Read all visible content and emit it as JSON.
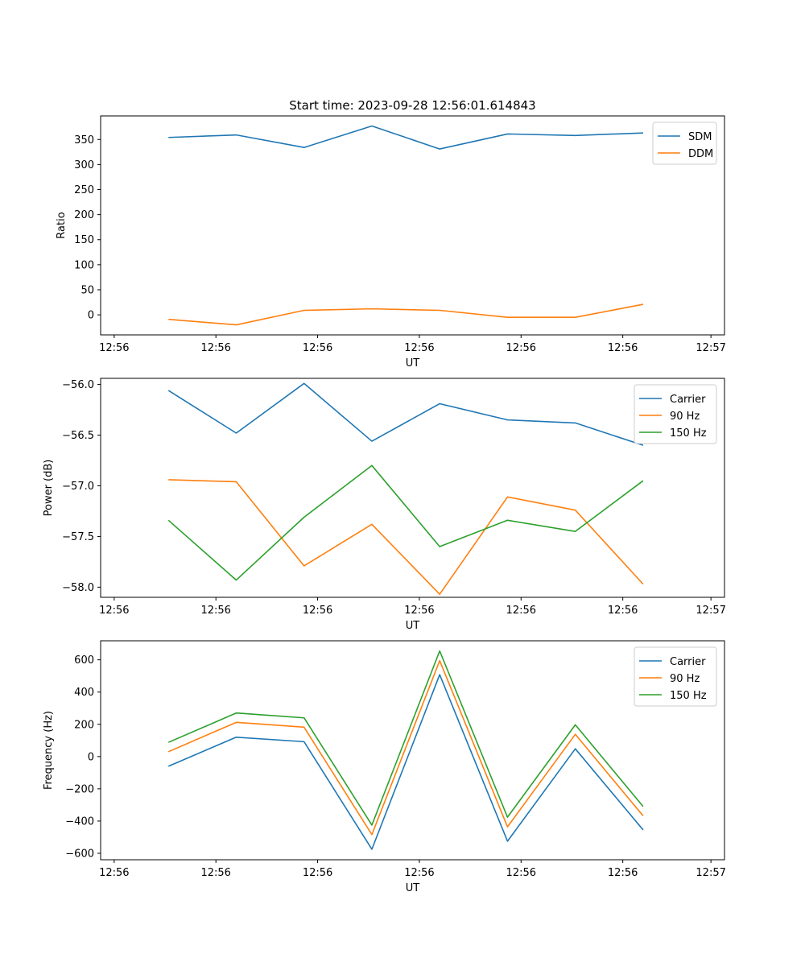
{
  "figure_title": "Start time: 2023-09-28 12:56:01.614843",
  "chart_data": [
    {
      "type": "line",
      "title": "Start time: 2023-09-28 12:56:01.614843",
      "xlabel": "UT",
      "ylabel": "Ratio",
      "x": [
        1,
        2,
        3,
        4,
        5,
        6,
        7,
        8
      ],
      "xlim": [
        0,
        9.2
      ],
      "xticks": [
        0.2,
        1.7,
        3.2,
        4.7,
        6.2,
        7.7,
        9.0
      ],
      "xtick_labels": [
        "12:56",
        "12:56",
        "12:56",
        "12:56",
        "12:56",
        "12:56",
        "12:57"
      ],
      "ylim": [
        -40,
        397
      ],
      "yticks": [
        0,
        50,
        100,
        150,
        200,
        250,
        300,
        350
      ],
      "ytick_labels": [
        "0",
        "50",
        "100",
        "150",
        "200",
        "250",
        "300",
        "350"
      ],
      "legend_position": "top-right",
      "series": [
        {
          "name": "SDM",
          "color": "#1f77b4",
          "values": [
            354,
            359,
            334,
            377,
            331,
            361,
            358,
            363
          ]
        },
        {
          "name": "DDM",
          "color": "#ff7f0e",
          "values": [
            -9,
            -20,
            9,
            12,
            9,
            -5,
            -5,
            21
          ]
        }
      ]
    },
    {
      "type": "line",
      "title": "",
      "xlabel": "UT",
      "ylabel": "Power (dB)",
      "x": [
        1,
        2,
        3,
        4,
        5,
        6,
        7,
        8
      ],
      "xlim": [
        0,
        9.2
      ],
      "xticks": [
        0.2,
        1.7,
        3.2,
        4.7,
        6.2,
        7.7,
        9.0
      ],
      "xtick_labels": [
        "12:56",
        "12:56",
        "12:56",
        "12:56",
        "12:56",
        "12:56",
        "12:57"
      ],
      "ylim": [
        -58.1,
        -55.94
      ],
      "yticks": [
        -58.0,
        -57.5,
        -57.0,
        -56.5,
        -56.0
      ],
      "ytick_labels": [
        "−58.0",
        "−57.5",
        "−57.0",
        "−56.5",
        "−56.0"
      ],
      "legend_position": "top-right",
      "series": [
        {
          "name": "Carrier",
          "color": "#1f77b4",
          "values": [
            -56.06,
            -56.48,
            -55.99,
            -56.56,
            -56.19,
            -56.35,
            -56.38,
            -56.6
          ]
        },
        {
          "name": "90 Hz",
          "color": "#ff7f0e",
          "values": [
            -56.94,
            -56.96,
            -57.79,
            -57.38,
            -58.07,
            -57.11,
            -57.24,
            -57.97
          ]
        },
        {
          "name": "150 Hz",
          "color": "#2ca02c",
          "values": [
            -57.34,
            -57.93,
            -57.31,
            -56.8,
            -57.6,
            -57.34,
            -57.45,
            -56.95
          ]
        }
      ]
    },
    {
      "type": "line",
      "title": "",
      "xlabel": "UT",
      "ylabel": "Frequency (Hz)",
      "x": [
        1,
        2,
        3,
        4,
        5,
        6,
        7,
        8
      ],
      "xlim": [
        0,
        9.2
      ],
      "xticks": [
        0.2,
        1.7,
        3.2,
        4.7,
        6.2,
        7.7,
        9.0
      ],
      "xtick_labels": [
        "12:56",
        "12:56",
        "12:56",
        "12:56",
        "12:56",
        "12:56",
        "12:57"
      ],
      "ylim": [
        -640,
        718
      ],
      "yticks": [
        -600,
        -400,
        -200,
        0,
        200,
        400,
        600
      ],
      "ytick_labels": [
        "−600",
        "−400",
        "−200",
        "0",
        "200",
        "400",
        "600"
      ],
      "legend_position": "top-right",
      "series": [
        {
          "name": "Carrier",
          "color": "#1f77b4",
          "values": [
            -60,
            120,
            92,
            -575,
            508,
            -525,
            48,
            -455
          ]
        },
        {
          "name": "90 Hz",
          "color": "#ff7f0e",
          "values": [
            30,
            212,
            182,
            -484,
            595,
            -436,
            138,
            -368
          ]
        },
        {
          "name": "150 Hz",
          "color": "#2ca02c",
          "values": [
            88,
            270,
            240,
            -425,
            655,
            -376,
            197,
            -310
          ]
        }
      ]
    }
  ]
}
